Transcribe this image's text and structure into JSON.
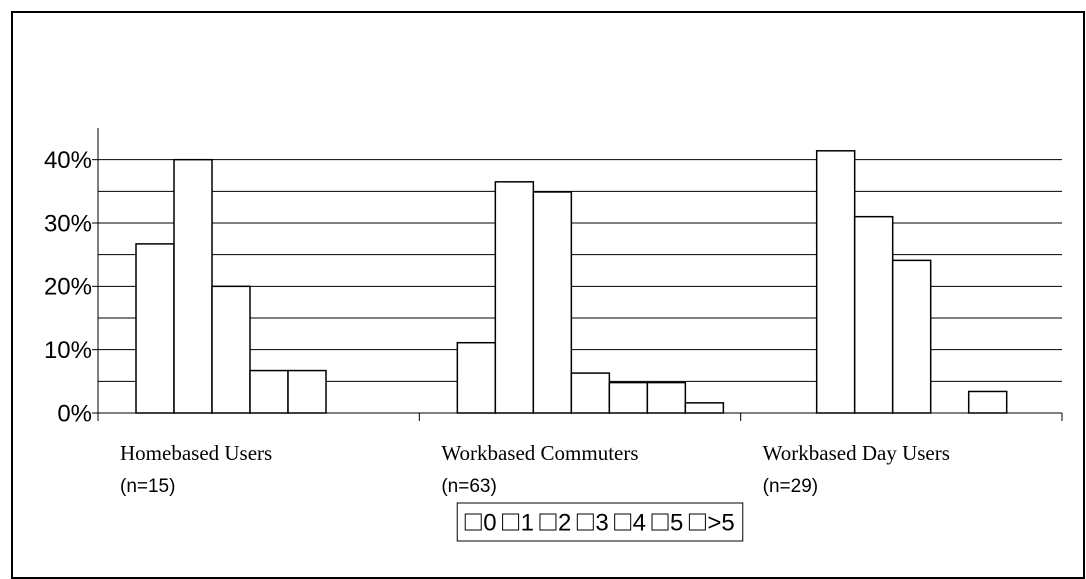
{
  "chart_data": {
    "type": "bar",
    "categories": [
      "Homebased Users",
      "Workbased Commuters",
      "Workbased Day Users"
    ],
    "category_notes": [
      "(n=15)",
      "(n=63)",
      "(n=29)"
    ],
    "series": [
      {
        "name": "0",
        "color": "#ffffff",
        "values": [
          26.7,
          11.1,
          0
        ]
      },
      {
        "name": "1",
        "color": "#ffffff",
        "values": [
          40.0,
          36.5,
          41.4
        ]
      },
      {
        "name": "2",
        "color": "#ffffff",
        "values": [
          20.0,
          34.9,
          31.0
        ]
      },
      {
        "name": "3",
        "color": "#ffffff",
        "values": [
          6.7,
          6.3,
          24.1
        ]
      },
      {
        "name": "4",
        "color": "#ffffff",
        "values": [
          6.7,
          4.8,
          0
        ]
      },
      {
        "name": "5",
        "color": "#ffffff",
        "values": [
          0,
          4.8,
          3.4
        ]
      },
      {
        "name": ">5",
        "color": "#ffffff",
        "values": [
          0,
          1.6,
          0
        ]
      }
    ],
    "ylim": [
      0,
      45
    ],
    "yticks": [
      {
        "value": 0,
        "label": "0%"
      },
      {
        "value": 10,
        "label": "10%"
      },
      {
        "value": 20,
        "label": "20%"
      },
      {
        "value": 30,
        "label": "30%"
      },
      {
        "value": 40,
        "label": "40%"
      }
    ],
    "minor_yticks": [
      5,
      15,
      25,
      35
    ],
    "grid": true,
    "legend": "bottom"
  }
}
